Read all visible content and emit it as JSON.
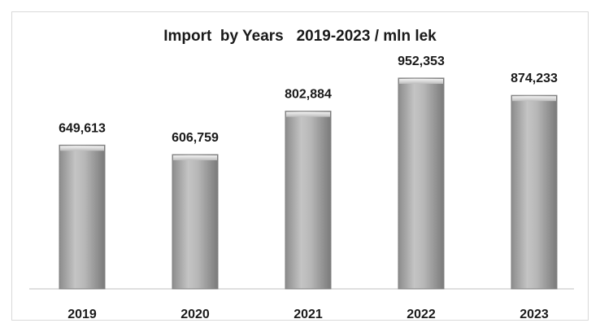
{
  "chart_data": {
    "type": "bar",
    "title": "Import  by Years   2019-2023 / mln lek",
    "categories": [
      "2019",
      "2020",
      "2021",
      "2022",
      "2023"
    ],
    "values": [
      649613,
      606759,
      802884,
      952353,
      874233
    ],
    "value_labels": [
      "649,613",
      "606,759",
      "802,884",
      "952,353",
      "874,233"
    ],
    "xlabel": "",
    "ylabel": "",
    "ylim": [
      0,
      1000000
    ],
    "grid": false,
    "legend": "none",
    "bar_color": "#a6a6a6",
    "bar_edge_color": "#7f7f7f"
  }
}
